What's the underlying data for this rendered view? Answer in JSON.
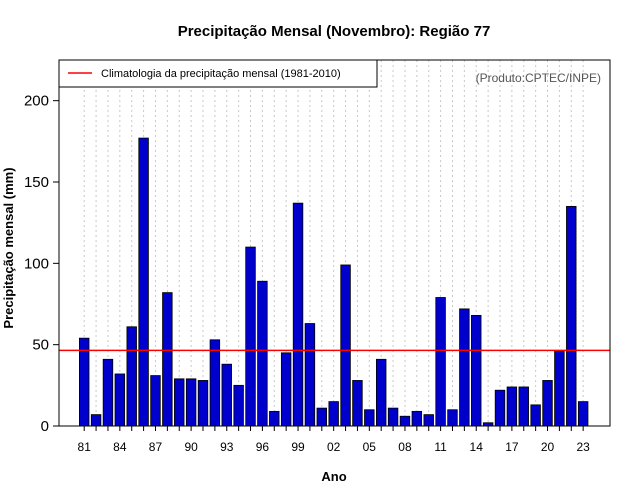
{
  "chart_data": {
    "type": "bar",
    "title": "Precipitação Mensal (Novembro): Região 77",
    "xlabel": "Ano",
    "ylabel": "Precipitação mensal (mm)",
    "ylim": [
      0,
      225
    ],
    "yticks": [
      0,
      50,
      100,
      150,
      200
    ],
    "grid": "vertical dotted",
    "categories": [
      "81",
      "82",
      "83",
      "84",
      "85",
      "86",
      "87",
      "88",
      "89",
      "90",
      "91",
      "92",
      "93",
      "94",
      "95",
      "96",
      "97",
      "98",
      "99",
      "00",
      "01",
      "02",
      "03",
      "04",
      "05",
      "06",
      "07",
      "08",
      "09",
      "10",
      "11",
      "12",
      "13",
      "14",
      "15",
      "16",
      "17",
      "18",
      "19",
      "20",
      "21",
      "22",
      "23"
    ],
    "xtick_labels": [
      "81",
      "84",
      "87",
      "90",
      "93",
      "96",
      "99",
      "02",
      "05",
      "08",
      "11",
      "14",
      "17",
      "20",
      "23"
    ],
    "values": [
      54,
      7,
      41,
      32,
      61,
      177,
      31,
      82,
      29,
      29,
      28,
      53,
      38,
      25,
      110,
      89,
      9,
      45,
      137,
      63,
      11,
      15,
      99,
      28,
      10,
      41,
      11,
      6,
      9,
      7,
      79,
      10,
      72,
      68,
      2,
      22,
      24,
      24,
      13,
      28,
      46,
      135,
      15
    ],
    "bar_color": "#0000CC",
    "climatology": {
      "value": 46.5,
      "color": "#FF0000",
      "label": "Climatologia da precipitação mensal (1981-2010)"
    },
    "legend_position": "top-left",
    "credit": "(Produto:CPTEC/INPE)"
  }
}
